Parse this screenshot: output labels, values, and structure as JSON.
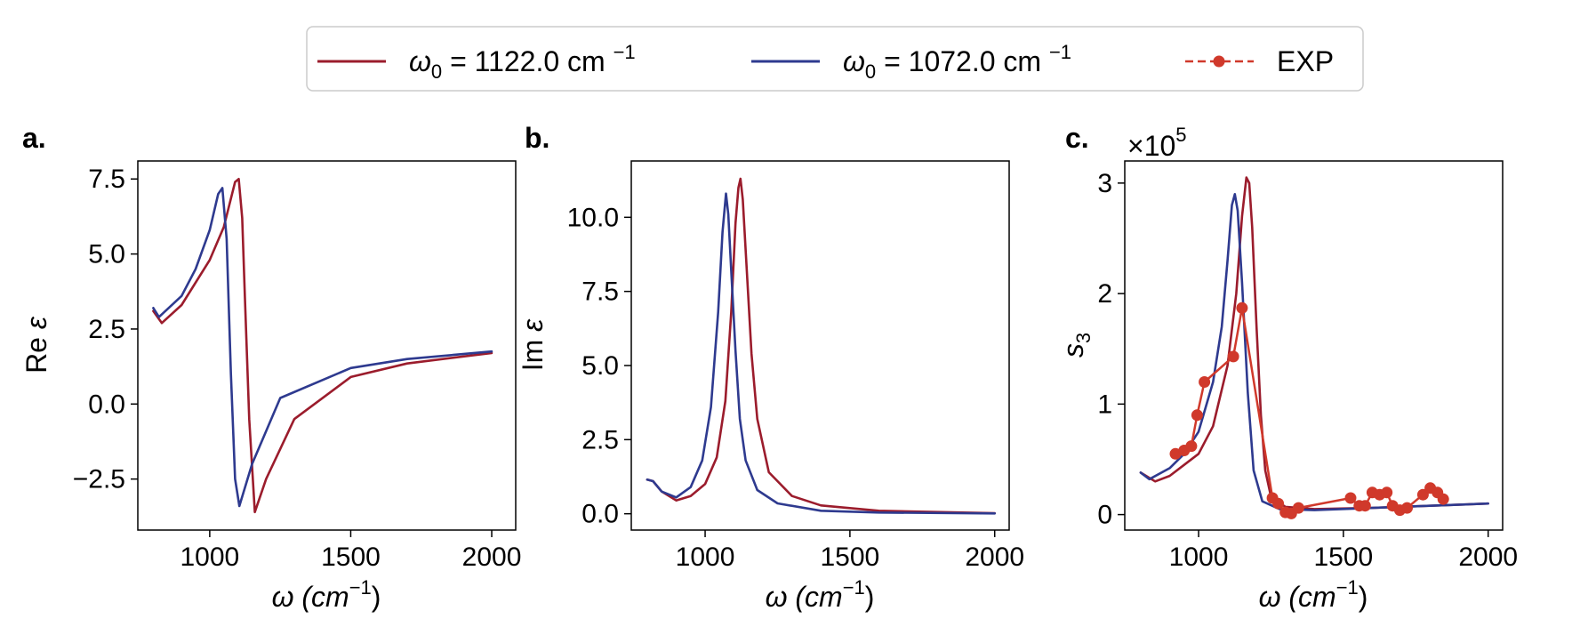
{
  "colors": {
    "red": "#9b1c2c",
    "blue": "#2e3a8f",
    "exp": "#d0392b",
    "frame": "#000000"
  },
  "legend": {
    "entries": [
      {
        "id": "red",
        "prefix": "ω",
        "sub": "0",
        "text": " = 1122.0 cm ",
        "sup": "−1"
      },
      {
        "id": "blue",
        "prefix": "ω",
        "sub": "0",
        "text": " = 1072.0 cm ",
        "sup": "−1"
      },
      {
        "id": "exp",
        "text": "EXP"
      }
    ]
  },
  "chart_data": [
    {
      "type": "line",
      "panel": "a.",
      "ylabel_main": "Re ",
      "ylabel_sym": "ε",
      "xlabel_main": "ω (cm",
      "xlabel_sup": "−1",
      "xlabel_close": ")",
      "xlim": [
        745,
        2085
      ],
      "ylim": [
        -4.2,
        8.1
      ],
      "xticks": [
        1000,
        1500,
        2000
      ],
      "xtick_labels": [
        "1000",
        "1500",
        "2000"
      ],
      "yticks": [
        7.5,
        5.0,
        2.5,
        0.0,
        -2.5
      ],
      "ytick_labels": [
        "7.5",
        "5.0",
        "2.5",
        "0.0",
        "−2.5"
      ],
      "series": [
        {
          "name": "ω0 = 1122.0 cm −1",
          "color_key": "red",
          "x": [
            800,
            830,
            900,
            1000,
            1050,
            1090,
            1103,
            1115,
            1125,
            1140,
            1160,
            1200,
            1300,
            1500,
            1700,
            2000
          ],
          "y": [
            3.1,
            2.7,
            3.3,
            4.8,
            5.9,
            7.4,
            7.5,
            6.2,
            3.5,
            -0.5,
            -3.6,
            -2.5,
            -0.5,
            0.9,
            1.35,
            1.7
          ]
        },
        {
          "name": "ω0 = 1072.0 cm −1",
          "color_key": "blue",
          "x": [
            800,
            820,
            900,
            950,
            1000,
            1030,
            1045,
            1060,
            1075,
            1090,
            1105,
            1150,
            1250,
            1500,
            1700,
            2000
          ],
          "y": [
            3.2,
            2.9,
            3.6,
            4.5,
            5.8,
            7.0,
            7.2,
            5.5,
            1.0,
            -2.5,
            -3.4,
            -2.0,
            0.2,
            1.2,
            1.5,
            1.75
          ]
        }
      ]
    },
    {
      "type": "line",
      "panel": "b.",
      "ylabel_main": "Im ",
      "ylabel_sym": "ε",
      "xlabel_main": "ω (cm",
      "xlabel_sup": "−1",
      "xlabel_close": ")",
      "xlim": [
        745,
        2050
      ],
      "ylim": [
        -0.55,
        11.9
      ],
      "xticks": [
        1000,
        1500,
        2000
      ],
      "xtick_labels": [
        "1000",
        "1500",
        "2000"
      ],
      "yticks": [
        10.0,
        7.5,
        5.0,
        2.5,
        0.0
      ],
      "ytick_labels": [
        "10.0",
        "7.5",
        "5.0",
        "2.5",
        "0.0"
      ],
      "series": [
        {
          "name": "ω0 = 1122.0 cm −1",
          "color_key": "red",
          "x": [
            800,
            820,
            850,
            900,
            950,
            1000,
            1040,
            1070,
            1090,
            1105,
            1115,
            1122,
            1130,
            1145,
            1160,
            1180,
            1220,
            1300,
            1400,
            1600,
            2000
          ],
          "y": [
            1.15,
            1.1,
            0.75,
            0.45,
            0.6,
            1.0,
            1.9,
            3.8,
            6.8,
            9.8,
            11.0,
            11.3,
            10.6,
            8.0,
            5.4,
            3.2,
            1.4,
            0.6,
            0.28,
            0.1,
            0.02
          ]
        },
        {
          "name": "ω0 = 1072.0 cm −1",
          "color_key": "blue",
          "x": [
            800,
            820,
            850,
            900,
            950,
            990,
            1020,
            1045,
            1060,
            1072,
            1080,
            1090,
            1105,
            1120,
            1140,
            1180,
            1250,
            1400,
            1600,
            2000
          ],
          "y": [
            1.15,
            1.1,
            0.75,
            0.55,
            0.9,
            1.8,
            3.6,
            6.8,
            9.5,
            10.8,
            10.1,
            8.2,
            5.5,
            3.2,
            1.8,
            0.8,
            0.35,
            0.1,
            0.04,
            0.01
          ]
        }
      ]
    },
    {
      "type": "line",
      "panel": "c.",
      "ylabel_main": "s",
      "ylabel_sub": "3",
      "offset_text_main": "×10",
      "offset_text_sup": "5",
      "xlabel_main": "ω (cm",
      "xlabel_sup": "−1",
      "xlabel_close": ")",
      "xlim": [
        745,
        2050
      ],
      "ylim": [
        -0.14,
        3.2
      ],
      "xticks": [
        1000,
        1500,
        2000
      ],
      "xtick_labels": [
        "1000",
        "1500",
        "2000"
      ],
      "yticks": [
        3,
        2,
        1,
        0
      ],
      "ytick_labels": [
        "3",
        "2",
        "1",
        "0"
      ],
      "series": [
        {
          "name": "ω0 = 1122.0 cm −1",
          "color_key": "red",
          "x": [
            800,
            850,
            900,
            950,
            1000,
            1050,
            1100,
            1130,
            1150,
            1165,
            1175,
            1185,
            1200,
            1215,
            1230,
            1250,
            1300,
            1400,
            1600,
            2000
          ],
          "y": [
            0.38,
            0.3,
            0.35,
            0.45,
            0.55,
            0.8,
            1.35,
            2.0,
            2.7,
            3.05,
            3.0,
            2.6,
            1.7,
            0.9,
            0.4,
            0.16,
            0.07,
            0.05,
            0.06,
            0.1
          ]
        },
        {
          "name": "ω0 = 1072.0 cm −1",
          "color_key": "blue",
          "x": [
            800,
            830,
            900,
            950,
            1000,
            1050,
            1080,
            1100,
            1115,
            1125,
            1135,
            1150,
            1170,
            1190,
            1220,
            1280,
            1400,
            1600,
            2000
          ],
          "y": [
            0.38,
            0.32,
            0.42,
            0.55,
            0.75,
            1.2,
            1.7,
            2.3,
            2.8,
            2.9,
            2.75,
            2.1,
            1.1,
            0.4,
            0.12,
            0.05,
            0.04,
            0.06,
            0.1
          ]
        },
        {
          "name": "EXP",
          "color_key": "exp",
          "markers": true,
          "x": [
            920,
            950,
            975,
            995,
            1020,
            1120,
            1150,
            1255,
            1275,
            1300,
            1320,
            1345,
            1525,
            1555,
            1575,
            1600,
            1625,
            1650,
            1670,
            1695,
            1720,
            1775,
            1800,
            1825,
            1845
          ],
          "y": [
            0.55,
            0.58,
            0.62,
            0.9,
            1.2,
            1.43,
            1.87,
            0.15,
            0.1,
            0.02,
            0.01,
            0.06,
            0.15,
            0.08,
            0.08,
            0.2,
            0.18,
            0.2,
            0.08,
            0.04,
            0.06,
            0.18,
            0.24,
            0.2,
            0.14
          ]
        }
      ]
    }
  ]
}
